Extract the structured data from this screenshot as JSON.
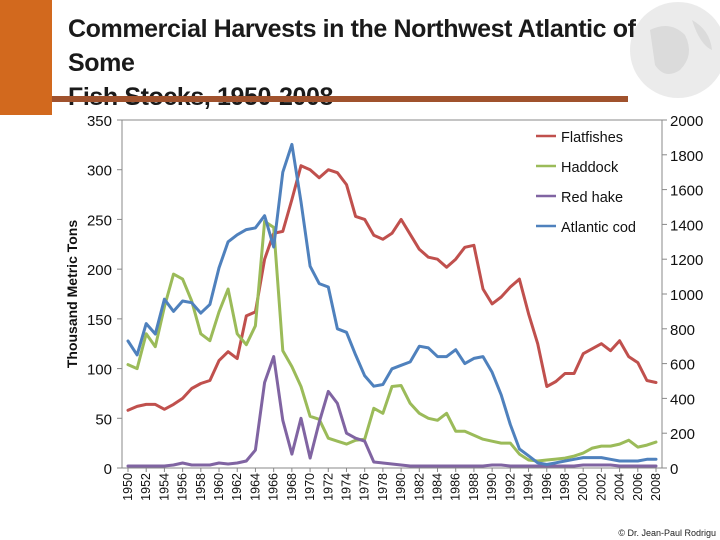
{
  "colors": {
    "corner": "#d2691e",
    "rule": "#a0522d"
  },
  "title": {
    "line1": "Commercial Harvests in the Northwest Atlantic of Some",
    "line2": "Fish Stocks, 1950-2008"
  },
  "credit": "© Dr. Jean-Paul Rodrigu",
  "chart_data": {
    "type": "line",
    "title": "Commercial Harvests in the Northwest Atlantic of Some Fish Stocks, 1950-2008",
    "ylabel": "Thousand Metric Tons",
    "xlabel": "",
    "ylim": [
      0,
      350
    ],
    "y2lim": [
      0,
      2000
    ],
    "yticks": [
      "0",
      "50",
      "100",
      "150",
      "200",
      "250",
      "300",
      "350"
    ],
    "y2ticks": [
      "0",
      "200",
      "400",
      "600",
      "800",
      "1000",
      "1200",
      "1400",
      "1600",
      "1800",
      "2000"
    ],
    "x": [
      1950,
      1951,
      1952,
      1953,
      1954,
      1955,
      1956,
      1957,
      1958,
      1959,
      1960,
      1961,
      1962,
      1963,
      1964,
      1965,
      1966,
      1967,
      1968,
      1969,
      1970,
      1971,
      1972,
      1973,
      1974,
      1975,
      1976,
      1977,
      1978,
      1979,
      1980,
      1981,
      1982,
      1983,
      1984,
      1985,
      1986,
      1987,
      1988,
      1989,
      1990,
      1991,
      1992,
      1993,
      1994,
      1995,
      1996,
      1997,
      1998,
      1999,
      2000,
      2001,
      2002,
      2003,
      2004,
      2005,
      2006,
      2007,
      2008
    ],
    "xtick_labels": [
      "1950",
      "1952",
      "1954",
      "1956",
      "1958",
      "1960",
      "1962",
      "1964",
      "1966",
      "1968",
      "1970",
      "1972",
      "1974",
      "1976",
      "1978",
      "1980",
      "1982",
      "1984",
      "1986",
      "1988",
      "1990",
      "1992",
      "1994",
      "1996",
      "1998",
      "2000",
      "2002",
      "2004",
      "2006",
      "2008"
    ],
    "legend_position": "top-right",
    "series": [
      {
        "name": "Flatfishes",
        "axis": "left",
        "color": "#c0504d",
        "values": [
          58,
          62,
          64,
          64,
          59,
          64,
          70,
          80,
          85,
          88,
          108,
          117,
          110,
          153,
          157,
          210,
          236,
          238,
          270,
          304,
          300,
          292,
          300,
          297,
          285,
          253,
          250,
          234,
          230,
          236,
          250,
          235,
          220,
          212,
          210,
          202,
          210,
          222,
          224,
          180,
          165,
          172,
          182,
          190,
          155,
          125,
          82,
          87,
          95,
          95,
          115,
          120,
          125,
          118,
          128,
          112,
          106,
          88,
          86
        ]
      },
      {
        "name": "Haddock",
        "axis": "left",
        "color": "#9bbb59",
        "values": [
          104,
          100,
          135,
          122,
          162,
          195,
          190,
          168,
          135,
          128,
          157,
          180,
          135,
          124,
          143,
          248,
          242,
          118,
          102,
          82,
          52,
          49,
          30,
          27,
          24,
          28,
          29,
          60,
          55,
          82,
          83,
          65,
          55,
          50,
          48,
          55,
          37,
          37,
          33,
          29,
          27,
          25,
          25,
          14,
          8,
          7,
          8,
          9,
          10,
          12,
          15,
          20,
          22,
          22,
          24,
          28,
          21,
          23,
          26
        ]
      },
      {
        "name": "Red hake",
        "axis": "left",
        "color": "#8064a2",
        "values": [
          2,
          2,
          2,
          2,
          2,
          3,
          5,
          3,
          3,
          3,
          5,
          4,
          5,
          7,
          18,
          86,
          112,
          48,
          14,
          50,
          10,
          46,
          77,
          65,
          35,
          30,
          27,
          6,
          5,
          4,
          3,
          2,
          2,
          2,
          2,
          2,
          2,
          2,
          2,
          2,
          3,
          3,
          2,
          2,
          2,
          2,
          2,
          2,
          2,
          2,
          3,
          3,
          3,
          3,
          2,
          2,
          2,
          2,
          2
        ]
      },
      {
        "name": "Atlantic cod",
        "axis": "right",
        "color": "#4f81bd",
        "values": [
          730,
          650,
          830,
          770,
          970,
          900,
          960,
          950,
          890,
          940,
          1150,
          1300,
          1340,
          1370,
          1380,
          1450,
          1270,
          1700,
          1860,
          1530,
          1160,
          1060,
          1040,
          800,
          780,
          650,
          530,
          470,
          480,
          570,
          590,
          610,
          700,
          690,
          640,
          640,
          680,
          600,
          630,
          640,
          550,
          420,
          250,
          110,
          70,
          30,
          20,
          30,
          40,
          50,
          60,
          60,
          60,
          50,
          40,
          40,
          40,
          50,
          50
        ]
      }
    ]
  }
}
